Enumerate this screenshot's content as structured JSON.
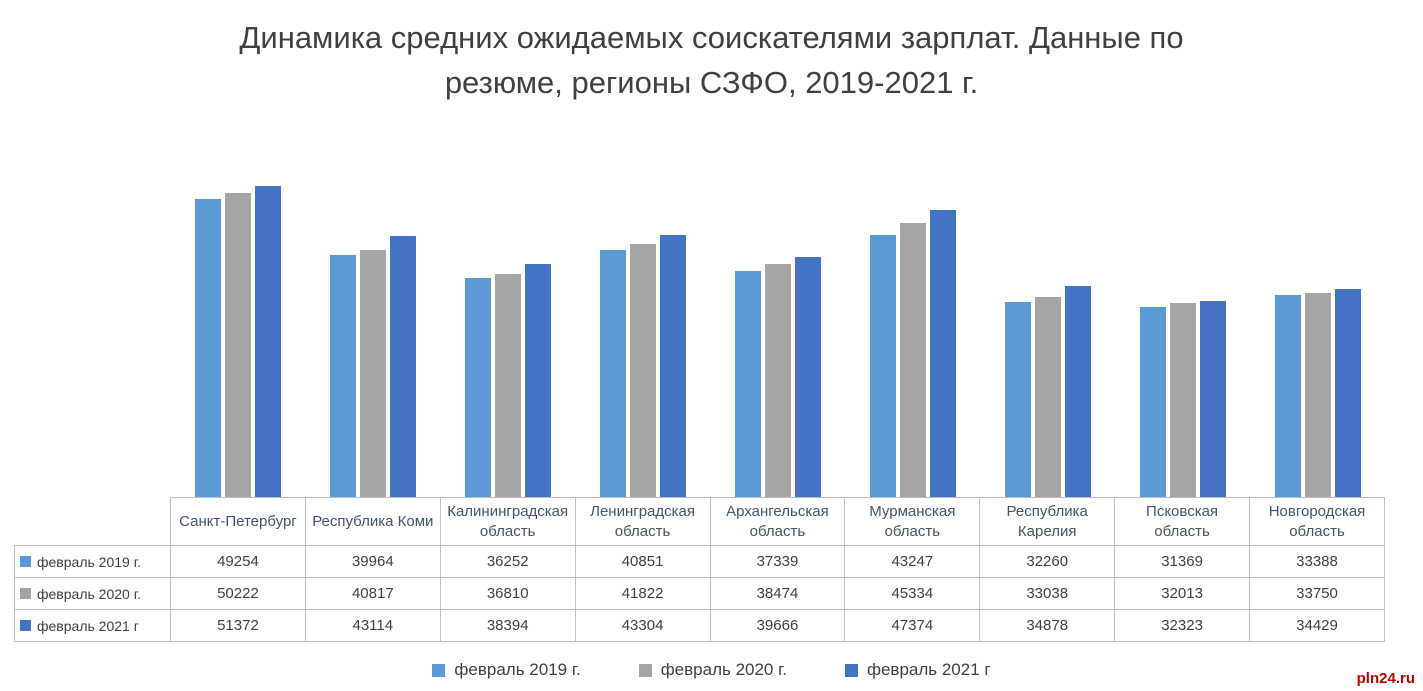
{
  "title": {
    "line1": "Динамика средних ожидаемых соискателями зарплат. Данные по",
    "line2": "резюме, регионы СЗФО, 2019-2021 г."
  },
  "watermark": "pln24.ru",
  "chart_data": {
    "type": "bar",
    "title": "Динамика средних ожидаемых соискателями зарплат. Данные по резюме, регионы СЗФО, 2019-2021 г.",
    "categories": [
      "Санкт-Петербург",
      "Республика Коми",
      "Калининградская область",
      "Ленинградская область",
      "Архангельская область",
      "Мурманская область",
      "Республика Карелия",
      "Псковская область",
      "Новгородская область"
    ],
    "series": [
      {
        "name": "февраль 2019 г.",
        "color": "#5B9BD5",
        "values": [
          49254,
          39964,
          36252,
          40851,
          37339,
          43247,
          32260,
          31369,
          33388
        ]
      },
      {
        "name": "февраль 2020 г.",
        "color": "#A5A5A5",
        "values": [
          50222,
          40817,
          36810,
          41822,
          38474,
          45334,
          33038,
          32013,
          33750
        ]
      },
      {
        "name": "февраль 2021 г",
        "color": "#4472C4",
        "values": [
          51372,
          43114,
          38394,
          43304,
          39666,
          47374,
          34878,
          32323,
          34429
        ]
      }
    ],
    "xlabel": "",
    "ylabel": "",
    "grid": false,
    "y_axis_visible": false,
    "axis_max_hint": 57000,
    "legend_position": "bottom",
    "data_table_shown": true
  }
}
